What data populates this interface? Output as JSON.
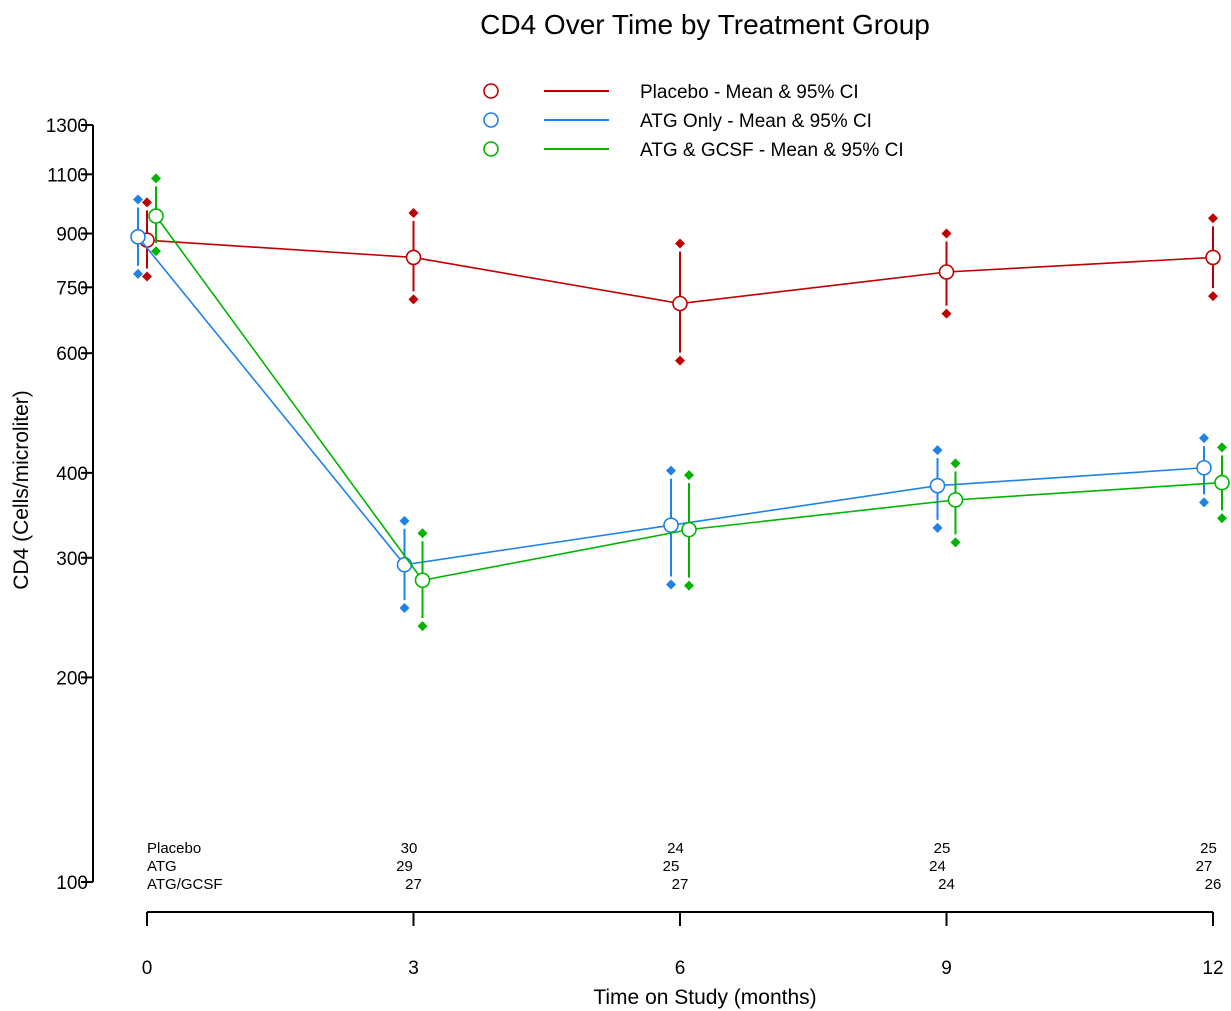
{
  "chart_data": {
    "type": "line",
    "title": "CD4 Over Time by Treatment Group",
    "xlabel": "Time on Study (months)",
    "ylabel": "CD4 (Cells/microliter)",
    "y_scale": "log",
    "ylim": [
      100,
      1300
    ],
    "xlim": [
      0,
      12
    ],
    "x_ticks": [
      0,
      3,
      6,
      9,
      12
    ],
    "y_ticks": [
      100,
      200,
      300,
      400,
      600,
      750,
      900,
      1100,
      1300
    ],
    "grid": false,
    "legend_position": "top",
    "x": [
      0,
      3,
      6,
      9,
      12
    ],
    "series": [
      {
        "name": "Placebo - Mean & 95% CI",
        "color": "#c00000",
        "mean": [
          880,
          830,
          710,
          790,
          830
        ],
        "lower": [
          778,
          720,
          585,
          686,
          728
        ],
        "upper": [
          1000,
          965,
          870,
          900,
          948
        ]
      },
      {
        "name": "ATG Only - Mean & 95% CI",
        "color": "#1f82e8",
        "mean": [
          890,
          293,
          335,
          383,
          407
        ],
        "lower": [
          785,
          253,
          274,
          332,
          362
        ],
        "upper": [
          1010,
          340,
          403,
          432,
          450
        ]
      },
      {
        "name": "ATG & GCSF - Mean & 95% CI",
        "color": "#00b400",
        "mean": [
          955,
          278,
          330,
          365,
          387
        ],
        "lower": [
          848,
          238,
          273,
          316,
          343
        ],
        "upper": [
          1085,
          326,
          397,
          413,
          436
        ]
      }
    ],
    "n_at_risk": {
      "rows": [
        {
          "label": "Placebo",
          "counts": [
            "30",
            "24",
            "25",
            "25"
          ]
        },
        {
          "label": "ATG",
          "counts": [
            "29",
            "25",
            "24",
            "27"
          ]
        },
        {
          "label": "ATG/GCSF",
          "counts": [
            "27",
            "27",
            "24",
            "26"
          ]
        }
      ],
      "times": [
        3,
        6,
        9,
        12
      ]
    }
  }
}
